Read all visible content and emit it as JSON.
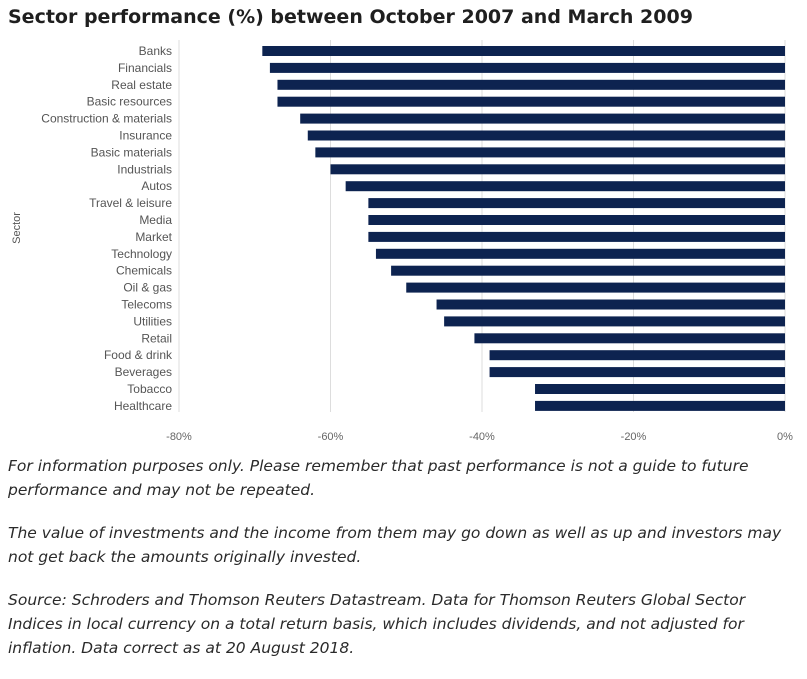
{
  "title": "Sector performance (%) between October 2007 and March 2009",
  "chart_data": {
    "type": "bar",
    "orientation": "horizontal",
    "title": "Sector performance (%) between October 2007 and March 2009",
    "ylabel": "Sector",
    "xlabel": "",
    "xlim": [
      -80,
      0
    ],
    "x_ticks": [
      "-80%",
      "-60%",
      "-40%",
      "-20%",
      "0%"
    ],
    "grid": "vertical",
    "bar_color": "#0d2350",
    "categories": [
      "Banks",
      "Financials",
      "Real estate",
      "Basic resources",
      "Construction & materials",
      "Insurance",
      "Basic materials",
      "Industrials",
      "Autos",
      "Travel & leisure",
      "Media",
      "Market",
      "Technology",
      "Chemicals",
      "Oil & gas",
      "Telecoms",
      "Utilities",
      "Retail",
      "Food & drink",
      "Beverages",
      "Tobacco",
      "Healthcare"
    ],
    "values": [
      -69,
      -68,
      -67,
      -67,
      -64,
      -63,
      -62,
      -60,
      -58,
      -55,
      -55,
      -55,
      -54,
      -52,
      -50,
      -46,
      -45,
      -41,
      -39,
      -39,
      -33,
      -33
    ]
  },
  "notes": [
    "For information purposes only. Please remember that past performance is not a guide to future performance and may not be repeated.",
    "The value of investments and the income from them may go down as well as up and investors may not get back the amounts originally invested.",
    "Source: Schroders and Thomson Reuters Datastream. Data for Thomson Reuters Global Sector Indices in local currency on a total return basis, which includes dividends, and not adjusted for inflation. Data correct as at 20 August 2018."
  ]
}
